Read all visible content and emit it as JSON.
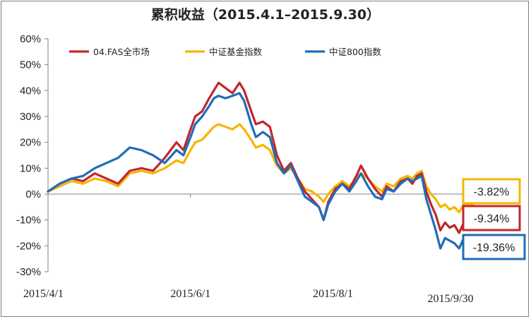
{
  "chart_data": {
    "type": "line",
    "title": "累积收益（2015.4.1–2015.9.30）",
    "xlabel": "",
    "ylabel": "",
    "ylim": [
      -30,
      60
    ],
    "y_ticks": [
      "60%",
      "50%",
      "40%",
      "30%",
      "20%",
      "10%",
      "0%",
      "-10%",
      "-20%",
      "-30%"
    ],
    "x_range": [
      "2015-04-01",
      "2015-09-30"
    ],
    "x_ticks": [
      {
        "date": "2015-04-01",
        "label": "2015/4/1"
      },
      {
        "date": "2015-06-01",
        "label": "2015/6/1"
      },
      {
        "date": "2015-08-01",
        "label": "2015/8/1"
      },
      {
        "date": "2015-09-30",
        "label": "2015/9/30"
      }
    ],
    "grid": false,
    "legend_position": "top",
    "series": [
      {
        "name": "04.FAS全市场",
        "color": "#c0272d",
        "end_label": "-9.34%",
        "points": [
          [
            "2015-04-01",
            1
          ],
          [
            "2015-04-06",
            4
          ],
          [
            "2015-04-11",
            6
          ],
          [
            "2015-04-16",
            5
          ],
          [
            "2015-04-21",
            8
          ],
          [
            "2015-04-26",
            6
          ],
          [
            "2015-05-01",
            4
          ],
          [
            "2015-05-06",
            9
          ],
          [
            "2015-05-11",
            10
          ],
          [
            "2015-05-16",
            9
          ],
          [
            "2015-05-21",
            14
          ],
          [
            "2015-05-26",
            20
          ],
          [
            "2015-05-29",
            17
          ],
          [
            "2015-06-01",
            25
          ],
          [
            "2015-06-03",
            30
          ],
          [
            "2015-06-06",
            32
          ],
          [
            "2015-06-09",
            37
          ],
          [
            "2015-06-11",
            40
          ],
          [
            "2015-06-13",
            43
          ],
          [
            "2015-06-16",
            41
          ],
          [
            "2015-06-19",
            39
          ],
          [
            "2015-06-22",
            43
          ],
          [
            "2015-06-24",
            40
          ],
          [
            "2015-06-27",
            32
          ],
          [
            "2015-06-29",
            27
          ],
          [
            "2015-07-02",
            28
          ],
          [
            "2015-07-05",
            26
          ],
          [
            "2015-07-08",
            15
          ],
          [
            "2015-07-11",
            9
          ],
          [
            "2015-07-14",
            12
          ],
          [
            "2015-07-17",
            6
          ],
          [
            "2015-07-20",
            1
          ],
          [
            "2015-07-23",
            -2
          ],
          [
            "2015-07-26",
            -5
          ],
          [
            "2015-07-28",
            -10
          ],
          [
            "2015-07-30",
            -3
          ],
          [
            "2015-08-02",
            2
          ],
          [
            "2015-08-05",
            4
          ],
          [
            "2015-08-08",
            2
          ],
          [
            "2015-08-11",
            7
          ],
          [
            "2015-08-13",
            11
          ],
          [
            "2015-08-16",
            6
          ],
          [
            "2015-08-19",
            2
          ],
          [
            "2015-08-22",
            -1
          ],
          [
            "2015-08-24",
            3
          ],
          [
            "2015-08-27",
            1
          ],
          [
            "2015-08-30",
            5
          ],
          [
            "2015-09-02",
            6
          ],
          [
            "2015-09-04",
            4
          ],
          [
            "2015-09-06",
            7
          ],
          [
            "2015-09-08",
            8
          ],
          [
            "2015-09-10",
            1
          ],
          [
            "2015-09-12",
            -4
          ],
          [
            "2015-09-14",
            -8
          ],
          [
            "2015-09-16",
            -14
          ],
          [
            "2015-09-18",
            -11
          ],
          [
            "2015-09-20",
            -13
          ],
          [
            "2015-09-22",
            -12
          ],
          [
            "2015-09-24",
            -15
          ],
          [
            "2015-09-26",
            -11
          ],
          [
            "2015-09-28",
            -10
          ],
          [
            "2015-09-30",
            -9.34
          ]
        ]
      },
      {
        "name": "中证基金指数",
        "color": "#f7b500",
        "end_label": "-3.82%",
        "points": [
          [
            "2015-04-01",
            1
          ],
          [
            "2015-04-06",
            3
          ],
          [
            "2015-04-11",
            5
          ],
          [
            "2015-04-16",
            4
          ],
          [
            "2015-04-21",
            6
          ],
          [
            "2015-04-26",
            5
          ],
          [
            "2015-05-01",
            3
          ],
          [
            "2015-05-06",
            8
          ],
          [
            "2015-05-11",
            9
          ],
          [
            "2015-05-16",
            8
          ],
          [
            "2015-05-21",
            10
          ],
          [
            "2015-05-26",
            13
          ],
          [
            "2015-05-29",
            12
          ],
          [
            "2015-06-01",
            17
          ],
          [
            "2015-06-03",
            20
          ],
          [
            "2015-06-06",
            21
          ],
          [
            "2015-06-09",
            24
          ],
          [
            "2015-06-11",
            26
          ],
          [
            "2015-06-13",
            27
          ],
          [
            "2015-06-16",
            26
          ],
          [
            "2015-06-19",
            25
          ],
          [
            "2015-06-22",
            27
          ],
          [
            "2015-06-24",
            25
          ],
          [
            "2015-06-27",
            21
          ],
          [
            "2015-06-29",
            18
          ],
          [
            "2015-07-02",
            19
          ],
          [
            "2015-07-05",
            17
          ],
          [
            "2015-07-08",
            11
          ],
          [
            "2015-07-11",
            8
          ],
          [
            "2015-07-14",
            10
          ],
          [
            "2015-07-17",
            6
          ],
          [
            "2015-07-20",
            2
          ],
          [
            "2015-07-23",
            1
          ],
          [
            "2015-07-26",
            -1
          ],
          [
            "2015-07-28",
            -3
          ],
          [
            "2015-07-30",
            0
          ],
          [
            "2015-08-02",
            3
          ],
          [
            "2015-08-05",
            5
          ],
          [
            "2015-08-08",
            3
          ],
          [
            "2015-08-11",
            6
          ],
          [
            "2015-08-13",
            8
          ],
          [
            "2015-08-16",
            6
          ],
          [
            "2015-08-19",
            3
          ],
          [
            "2015-08-22",
            1
          ],
          [
            "2015-08-24",
            4
          ],
          [
            "2015-08-27",
            3
          ],
          [
            "2015-08-30",
            6
          ],
          [
            "2015-09-02",
            7
          ],
          [
            "2015-09-04",
            6
          ],
          [
            "2015-09-06",
            8
          ],
          [
            "2015-09-08",
            9
          ],
          [
            "2015-09-10",
            3
          ],
          [
            "2015-09-12",
            0
          ],
          [
            "2015-09-14",
            -2
          ],
          [
            "2015-09-16",
            -5
          ],
          [
            "2015-09-18",
            -4
          ],
          [
            "2015-09-20",
            -6
          ],
          [
            "2015-09-22",
            -5
          ],
          [
            "2015-09-24",
            -7
          ],
          [
            "2015-09-26",
            -4
          ],
          [
            "2015-09-28",
            -4
          ],
          [
            "2015-09-30",
            -3.82
          ]
        ]
      },
      {
        "name": "中证800指数",
        "color": "#1f6db8",
        "end_label": "-19.36%",
        "points": [
          [
            "2015-04-01",
            1
          ],
          [
            "2015-04-06",
            4
          ],
          [
            "2015-04-11",
            6
          ],
          [
            "2015-04-16",
            7
          ],
          [
            "2015-04-21",
            10
          ],
          [
            "2015-04-26",
            12
          ],
          [
            "2015-05-01",
            14
          ],
          [
            "2015-05-06",
            18
          ],
          [
            "2015-05-11",
            17
          ],
          [
            "2015-05-16",
            15
          ],
          [
            "2015-05-21",
            12
          ],
          [
            "2015-05-26",
            17
          ],
          [
            "2015-05-29",
            15
          ],
          [
            "2015-06-01",
            22
          ],
          [
            "2015-06-03",
            27
          ],
          [
            "2015-06-06",
            30
          ],
          [
            "2015-06-09",
            34
          ],
          [
            "2015-06-11",
            37
          ],
          [
            "2015-06-13",
            38
          ],
          [
            "2015-06-16",
            37
          ],
          [
            "2015-06-19",
            38
          ],
          [
            "2015-06-22",
            39
          ],
          [
            "2015-06-24",
            36
          ],
          [
            "2015-06-27",
            27
          ],
          [
            "2015-06-29",
            22
          ],
          [
            "2015-07-02",
            24
          ],
          [
            "2015-07-05",
            22
          ],
          [
            "2015-07-08",
            12
          ],
          [
            "2015-07-11",
            8
          ],
          [
            "2015-07-14",
            11
          ],
          [
            "2015-07-17",
            5
          ],
          [
            "2015-07-20",
            -1
          ],
          [
            "2015-07-23",
            -3
          ],
          [
            "2015-07-26",
            -5
          ],
          [
            "2015-07-28",
            -10
          ],
          [
            "2015-07-30",
            -4
          ],
          [
            "2015-08-02",
            1
          ],
          [
            "2015-08-05",
            4
          ],
          [
            "2015-08-08",
            1
          ],
          [
            "2015-08-11",
            5
          ],
          [
            "2015-08-13",
            8
          ],
          [
            "2015-08-16",
            3
          ],
          [
            "2015-08-19",
            -1
          ],
          [
            "2015-08-22",
            -2
          ],
          [
            "2015-08-24",
            2
          ],
          [
            "2015-08-27",
            1
          ],
          [
            "2015-08-30",
            4
          ],
          [
            "2015-09-02",
            6
          ],
          [
            "2015-09-04",
            5
          ],
          [
            "2015-09-06",
            6
          ],
          [
            "2015-09-08",
            7
          ],
          [
            "2015-09-10",
            -2
          ],
          [
            "2015-09-12",
            -8
          ],
          [
            "2015-09-14",
            -14
          ],
          [
            "2015-09-16",
            -21
          ],
          [
            "2015-09-18",
            -17
          ],
          [
            "2015-09-20",
            -18
          ],
          [
            "2015-09-22",
            -19
          ],
          [
            "2015-09-24",
            -21
          ],
          [
            "2015-09-26",
            -17
          ],
          [
            "2015-09-28",
            -19
          ],
          [
            "2015-09-30",
            -19.36
          ]
        ]
      }
    ]
  }
}
